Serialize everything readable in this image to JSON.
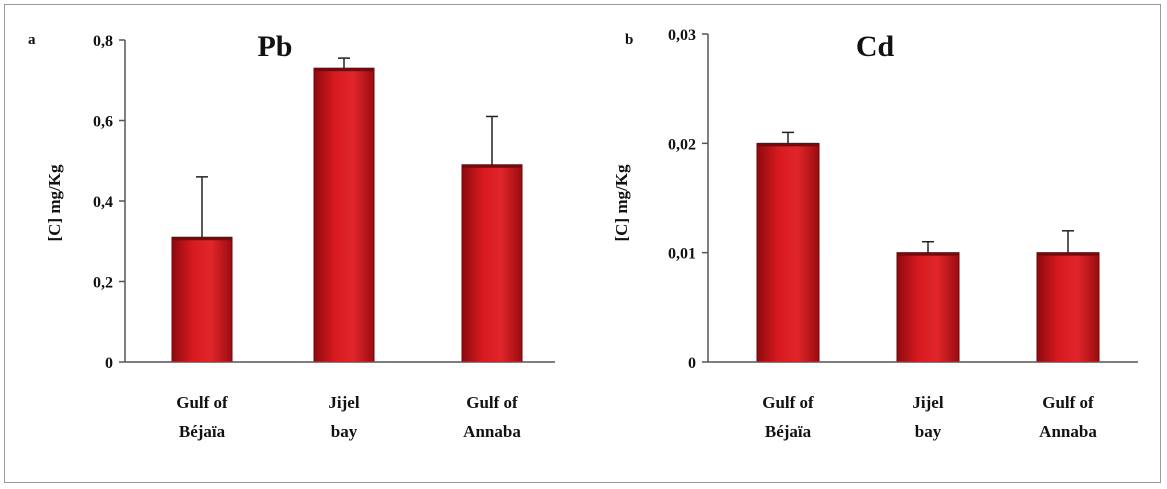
{
  "chart_data": [
    {
      "type": "bar",
      "panel": "a",
      "title": "Pb",
      "ylabel": "[C] mg/Kg",
      "xlabel": "",
      "categories": [
        "Gulf of Béjaïa",
        "Jijel bay",
        "Gulf of Annaba"
      ],
      "category_lines": [
        [
          "Gulf of",
          "Béjaïa"
        ],
        [
          "Jijel",
          "bay"
        ],
        [
          "Gulf of",
          "Annaba"
        ]
      ],
      "values": [
        0.31,
        0.73,
        0.49
      ],
      "error_upper": [
        0.15,
        0.025,
        0.12
      ],
      "ylim": [
        0,
        0.8
      ],
      "yticks": [
        0,
        0.2,
        0.4,
        0.6,
        0.8
      ],
      "ytick_labels": [
        "0",
        "0,2",
        "0,4",
        "0,6",
        "0,8"
      ],
      "grid": false,
      "legend": "none",
      "bar_color": "#c8141a"
    },
    {
      "type": "bar",
      "panel": "b",
      "title": "Cd",
      "ylabel": "[C] mg/Kg",
      "xlabel": "",
      "categories": [
        "Gulf of Béjaïa",
        "Jijel bay",
        "Gulf of Annaba"
      ],
      "category_lines": [
        [
          "Gulf of",
          "Béjaïa"
        ],
        [
          "Jijel",
          "bay"
        ],
        [
          "Gulf of",
          "Annaba"
        ]
      ],
      "values": [
        0.02,
        0.01,
        0.01
      ],
      "error_upper": [
        0.001,
        0.001,
        0.002
      ],
      "ylim": [
        0,
        0.03
      ],
      "yticks": [
        0,
        0.01,
        0.02,
        0.03
      ],
      "ytick_labels": [
        "0",
        "0,01",
        "0,02",
        "0,03"
      ],
      "grid": false,
      "legend": "none",
      "bar_color": "#c8141a"
    }
  ]
}
